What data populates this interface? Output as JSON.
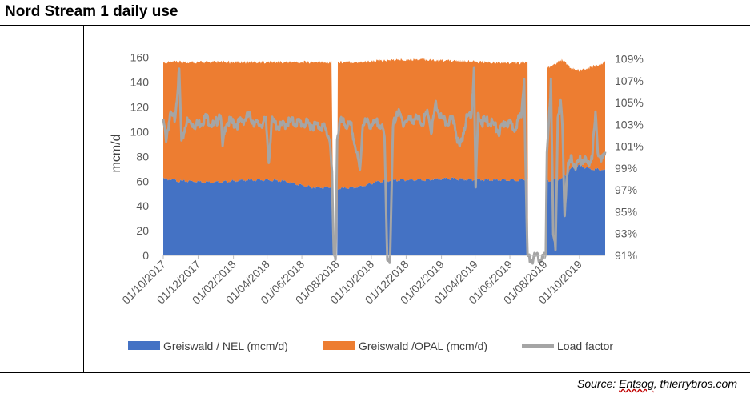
{
  "page": {
    "title": "Nord Stream 1 daily use",
    "source_prefix": "Source: ",
    "source_name": "Entsog",
    "source_suffix": ", thierrybros.com"
  },
  "chart_data": {
    "type": "area",
    "title": "Nord Stream 1 daily use",
    "ylabel": "mcm/d",
    "ylim": [
      0,
      165
    ],
    "y_ticks": [
      0,
      20,
      40,
      60,
      80,
      100,
      120,
      140,
      160
    ],
    "y2lim": [
      91,
      109.7
    ],
    "y2_ticks": [
      "91%",
      "93%",
      "95%",
      "97%",
      "99%",
      "101%",
      "103%",
      "105%",
      "107%",
      "109%"
    ],
    "x_ticks": [
      "01/10/2017",
      "01/12/2017",
      "01/02/2018",
      "01/04/2018",
      "01/06/2018",
      "01/08/2018",
      "01/10/2018",
      "01/12/2018",
      "01/02/2019",
      "01/04/2019",
      "01/06/2019",
      "01/08/2019",
      "01/10/2019"
    ],
    "x_range": [
      "01/10/2017",
      "15/11/2019"
    ],
    "colors": {
      "nel": "#4472c4",
      "opal": "#ed7d31",
      "load": "#a5a5a5"
    },
    "legend": [
      "Greiswald / NEL (mcm/d)",
      "Greiswald /OPAL (mcm/d)",
      "Load factor"
    ],
    "series": [
      {
        "name": "Greiswald / NEL (mcm/d)",
        "axis": "left",
        "points": [
          [
            0,
            62
          ],
          [
            30,
            60
          ],
          [
            60,
            60
          ],
          [
            90,
            59
          ],
          [
            120,
            60
          ],
          [
            150,
            61
          ],
          [
            180,
            61
          ],
          [
            210,
            60
          ],
          [
            240,
            57
          ],
          [
            260,
            55
          ],
          [
            295,
            55
          ],
          [
            299,
            0
          ],
          [
            300,
            0
          ],
          [
            305,
            0
          ],
          [
            306,
            54
          ],
          [
            340,
            55
          ],
          [
            380,
            60
          ],
          [
            420,
            61
          ],
          [
            460,
            61
          ],
          [
            500,
            62
          ],
          [
            560,
            61
          ],
          [
            610,
            61
          ],
          [
            639,
            61
          ],
          [
            640,
            0
          ],
          [
            672,
            0
          ],
          [
            673,
            60
          ],
          [
            700,
            62
          ],
          [
            715,
            70
          ],
          [
            730,
            73
          ],
          [
            745,
            70
          ],
          [
            775,
            69
          ]
        ]
      },
      {
        "name": "Greiswald /OPAL (mcm/d)",
        "axis": "left",
        "points": [
          [
            0,
            93
          ],
          [
            30,
            95
          ],
          [
            60,
            95
          ],
          [
            90,
            96
          ],
          [
            120,
            95
          ],
          [
            150,
            94
          ],
          [
            180,
            94
          ],
          [
            210,
            95
          ],
          [
            240,
            98
          ],
          [
            260,
            100
          ],
          [
            295,
            100
          ],
          [
            299,
            0
          ],
          [
            300,
            0
          ],
          [
            305,
            0
          ],
          [
            306,
            101
          ],
          [
            340,
            100
          ],
          [
            380,
            96
          ],
          [
            420,
            96
          ],
          [
            460,
            96
          ],
          [
            500,
            94
          ],
          [
            560,
            94
          ],
          [
            610,
            93
          ],
          [
            639,
            94
          ],
          [
            640,
            0
          ],
          [
            672,
            0
          ],
          [
            673,
            90
          ],
          [
            700,
            95
          ],
          [
            715,
            80
          ],
          [
            730,
            75
          ],
          [
            745,
            80
          ],
          [
            775,
            86
          ]
        ]
      },
      {
        "name": "Load factor",
        "axis": "right",
        "points": [
          [
            0,
            103.5
          ],
          [
            5,
            102.0
          ],
          [
            12,
            104.0
          ],
          [
            20,
            103.8
          ],
          [
            28,
            108.0
          ],
          [
            32,
            101.5
          ],
          [
            40,
            103.5
          ],
          [
            60,
            103.2
          ],
          [
            75,
            103.9
          ],
          [
            90,
            103.0
          ],
          [
            100,
            104.5
          ],
          [
            104,
            101.0
          ],
          [
            110,
            103.5
          ],
          [
            130,
            103.3
          ],
          [
            150,
            104.0
          ],
          [
            165,
            103.2
          ],
          [
            180,
            103.5
          ],
          [
            185,
            100.0
          ],
          [
            190,
            103.5
          ],
          [
            205,
            103.0
          ],
          [
            220,
            103.5
          ],
          [
            240,
            103.4
          ],
          [
            260,
            103.2
          ],
          [
            280,
            103.1
          ],
          [
            292,
            102.0
          ],
          [
            296,
            98.5
          ],
          [
            299,
            91.0
          ],
          [
            302,
            91.0
          ],
          [
            305,
            102.0
          ],
          [
            310,
            103.5
          ],
          [
            330,
            103.0
          ],
          [
            345,
            99.0
          ],
          [
            350,
            103.5
          ],
          [
            370,
            103.2
          ],
          [
            380,
            103.5
          ],
          [
            388,
            102.0
          ],
          [
            393,
            91.0
          ],
          [
            398,
            91.0
          ],
          [
            403,
            103.0
          ],
          [
            410,
            104.5
          ],
          [
            420,
            103.5
          ],
          [
            440,
            103.8
          ],
          [
            455,
            103.5
          ],
          [
            465,
            104.3
          ],
          [
            470,
            102.5
          ],
          [
            478,
            105.0
          ],
          [
            490,
            103.5
          ],
          [
            510,
            103.6
          ],
          [
            520,
            101.0
          ],
          [
            530,
            103.5
          ],
          [
            541,
            104.5
          ],
          [
            545,
            108.5
          ],
          [
            548,
            97.0
          ],
          [
            552,
            104.0
          ],
          [
            560,
            103.5
          ],
          [
            575,
            103.5
          ],
          [
            590,
            102.5
          ],
          [
            600,
            103.5
          ],
          [
            615,
            103.0
          ],
          [
            628,
            104.0
          ],
          [
            633,
            107.5
          ],
          [
            636,
            98.0
          ],
          [
            639,
            91.0
          ],
          [
            640,
            91.0
          ],
          [
            671,
            91.0
          ],
          [
            673,
            101.0
          ],
          [
            680,
            107.0
          ],
          [
            684,
            93.0
          ],
          [
            688,
            92.0
          ],
          [
            692,
            104.0
          ],
          [
            697,
            105.0
          ],
          [
            700,
            103.0
          ],
          [
            704,
            95.0
          ],
          [
            708,
            99.0
          ],
          [
            715,
            100.0
          ],
          [
            725,
            99.5
          ],
          [
            735,
            100.2
          ],
          [
            745,
            99.5
          ],
          [
            752,
            100.5
          ],
          [
            758,
            104.0
          ],
          [
            762,
            101.0
          ],
          [
            768,
            100.0
          ],
          [
            775,
            100.5
          ]
        ]
      }
    ]
  }
}
